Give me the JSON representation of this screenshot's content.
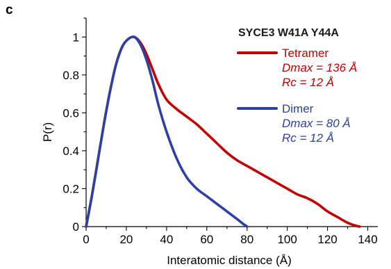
{
  "panel_label": "c",
  "chart_data": {
    "type": "line",
    "title": "SYCE3 W41A Y44A",
    "xlabel": "Interatomic distance (Å)",
    "ylabel": "P(r)",
    "xlim": [
      0,
      145
    ],
    "ylim": [
      0,
      1.1
    ],
    "xticks": [
      0,
      20,
      40,
      60,
      80,
      100,
      120,
      140
    ],
    "yticks": [
      0,
      0.2,
      0.4,
      0.6,
      0.8,
      1
    ],
    "grid": false,
    "legend_position": "top-right",
    "series": [
      {
        "name": "Tetramer",
        "color": "#c00000",
        "notes": [
          "Dmax = 136 Å",
          "Rc = 12 Å"
        ],
        "x": [
          0,
          3,
          6,
          9,
          12,
          15,
          18,
          21,
          24,
          27,
          30,
          33,
          36,
          40,
          45,
          50,
          55,
          60,
          65,
          70,
          75,
          80,
          85,
          90,
          95,
          100,
          105,
          110,
          115,
          120,
          125,
          130,
          134,
          136
        ],
        "y": [
          0,
          0.17,
          0.36,
          0.55,
          0.72,
          0.86,
          0.95,
          0.99,
          1.0,
          0.97,
          0.91,
          0.83,
          0.75,
          0.67,
          0.62,
          0.58,
          0.54,
          0.49,
          0.44,
          0.39,
          0.35,
          0.32,
          0.29,
          0.26,
          0.23,
          0.2,
          0.17,
          0.15,
          0.12,
          0.08,
          0.05,
          0.02,
          0.005,
          0
        ]
      },
      {
        "name": "Dimer",
        "color": "#2e3fa6",
        "notes": [
          "Dmax = 80 Å",
          "Rc = 12 Å"
        ],
        "x": [
          0,
          3,
          6,
          9,
          12,
          15,
          18,
          21,
          24,
          27,
          30,
          33,
          36,
          40,
          45,
          50,
          55,
          60,
          65,
          70,
          75,
          78,
          80
        ],
        "y": [
          0,
          0.17,
          0.36,
          0.55,
          0.72,
          0.86,
          0.95,
          0.99,
          1.0,
          0.96,
          0.88,
          0.77,
          0.64,
          0.5,
          0.36,
          0.26,
          0.2,
          0.16,
          0.12,
          0.08,
          0.04,
          0.015,
          0
        ]
      }
    ]
  }
}
